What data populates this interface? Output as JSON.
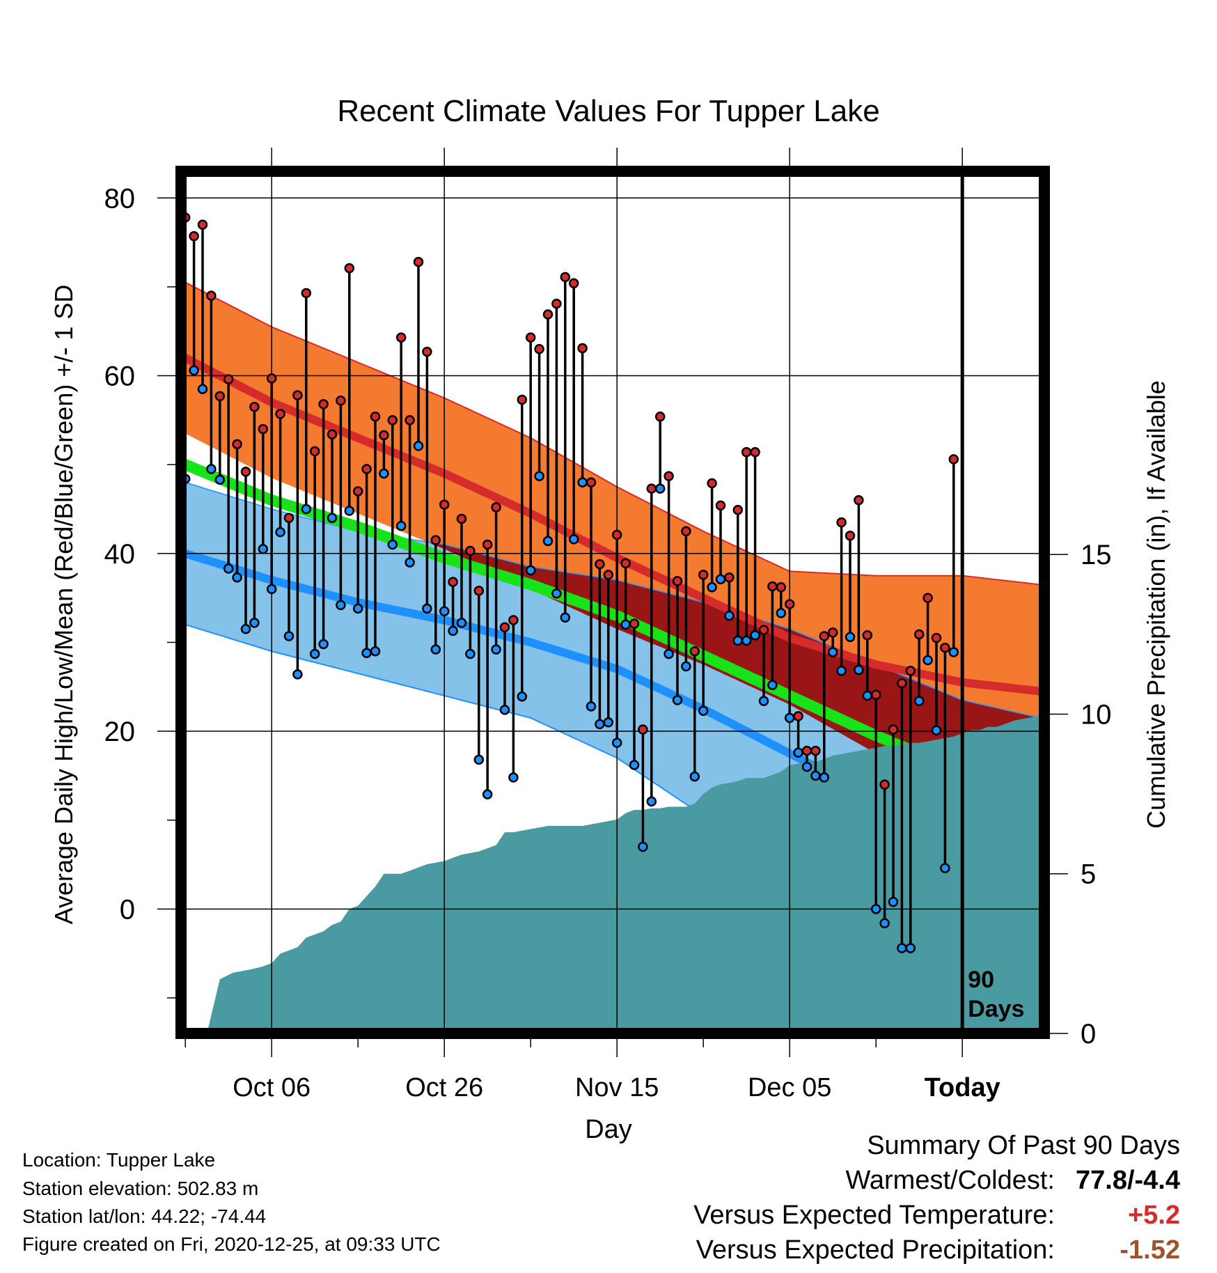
{
  "chart_data": {
    "type": "line",
    "title": "Recent Climate Values For Tupper Lake",
    "xlabel": "Day",
    "ylabel": "Average Daily High/Low/Mean (Red/Blue/Green) +/- 1 SD",
    "y2label": "Cumulative Precipitation (in), If Available",
    "ylim": [
      -14,
      83
    ],
    "y2lim": [
      0,
      27
    ],
    "yticks": [
      0,
      20,
      40,
      60,
      80
    ],
    "y2ticks": [
      0,
      5,
      10,
      15
    ],
    "x_tick_labels": [
      {
        "day": 10,
        "label": "Oct 06"
      },
      {
        "day": 30,
        "label": "Oct 26"
      },
      {
        "day": 50,
        "label": "Nov 15"
      },
      {
        "day": 70,
        "label": "Dec 05"
      },
      {
        "day": 90,
        "label": "Today"
      }
    ],
    "x_range": [
      -0.5,
      99.5
    ],
    "today_marker": {
      "day": 90,
      "label_line1": "90",
      "label_line2": "Days"
    },
    "grid": true,
    "colors": {
      "high_band": "#f47a30",
      "high_mean": "#d62b2b",
      "low_band": "#84c2ea",
      "low_mean": "#1e90ff",
      "mean_band": "#18e318",
      "overlap_band": "#9a1515",
      "precipitation": "#4a9aa2",
      "high_point": "#d62b2b",
      "low_point": "#1e90ff"
    },
    "normals": {
      "days": [
        0,
        10,
        20,
        30,
        40,
        50,
        60,
        70,
        80,
        90,
        99
      ],
      "high_mean": [
        62,
        57,
        53,
        49,
        44.5,
        39.5,
        35,
        30.5,
        27.5,
        25.5,
        24.5
      ],
      "high_sd": [
        8.5,
        8.5,
        8.5,
        8.5,
        8.5,
        8,
        7.5,
        7.5,
        10,
        12,
        12
      ],
      "low_mean": [
        40,
        37,
        34.5,
        32.5,
        30,
        27,
        22.5,
        17.5,
        12.5,
        8,
        5.5
      ],
      "low_sd": [
        8,
        8,
        8,
        8.5,
        8.5,
        10,
        12,
        14,
        15,
        15.5,
        16
      ],
      "mean": [
        50,
        46,
        43,
        39.5,
        36.5,
        33,
        28.5,
        24,
        19.5,
        15.5,
        12.5
      ]
    },
    "series": [
      {
        "name": "High",
        "values": [
          77.8,
          75.7,
          77.0,
          69.0,
          57.7,
          59.6,
          52.3,
          49.2,
          56.5,
          54.0,
          59.7,
          55.7,
          44.0,
          57.8,
          69.3,
          51.5,
          56.8,
          53.4,
          57.2,
          72.1,
          47.0,
          49.5,
          55.4,
          53.3,
          55.0,
          64.3,
          55.0,
          72.8,
          62.7,
          41.5,
          45.5,
          36.8,
          43.9,
          40.3,
          35.8,
          41.0,
          45.2,
          31.7,
          32.5,
          57.3,
          64.3,
          63.0,
          66.9,
          68.1,
          71.1,
          70.4,
          63.1,
          48.0,
          38.8,
          37.6,
          42.1,
          38.9,
          32.1,
          20.2,
          47.3,
          55.4,
          48.7,
          36.9,
          42.5,
          29.0,
          37.6,
          47.9,
          45.4,
          37.3,
          44.9,
          51.4,
          51.4,
          31.4,
          36.3,
          36.2,
          34.3,
          21.7,
          17.8,
          17.8,
          30.7,
          31.1,
          43.5,
          42.0,
          46.0,
          30.8,
          24.1,
          14.0,
          20.2,
          25.4,
          26.8,
          30.9,
          35.0,
          30.5,
          29.4,
          50.6
        ],
        "color": "#d62b2b"
      },
      {
        "name": "Low",
        "values": [
          48.4,
          60.6,
          58.5,
          49.5,
          48.3,
          38.3,
          37.3,
          31.5,
          32.2,
          40.5,
          36.0,
          42.4,
          30.7,
          26.4,
          45.0,
          28.7,
          29.8,
          44.0,
          34.2,
          44.8,
          33.8,
          28.8,
          29.0,
          49.0,
          41.0,
          43.1,
          39.0,
          52.1,
          33.8,
          29.2,
          33.5,
          31.3,
          32.2,
          28.7,
          16.8,
          12.9,
          29.2,
          22.4,
          14.8,
          23.9,
          38.1,
          48.7,
          41.4,
          35.5,
          32.8,
          41.6,
          48.0,
          22.8,
          20.8,
          21.0,
          18.7,
          32.0,
          16.2,
          7.0,
          12.1,
          47.3,
          28.7,
          23.5,
          27.3,
          14.9,
          22.3,
          36.2,
          37.1,
          33.0,
          30.2,
          30.2,
          30.8,
          23.4,
          25.2,
          33.3,
          21.5,
          17.6,
          16.0,
          15.0,
          14.8,
          28.9,
          26.8,
          30.6,
          26.9,
          24.0,
          0.0,
          -1.6,
          0.8,
          -4.4,
          -4.4,
          23.4,
          28.0,
          20.1,
          4.6,
          28.9
        ],
        "color": "#1e90ff"
      }
    ],
    "precipitation": {
      "name": "Cumulative precipitation",
      "days": [
        -0.5,
        2.5,
        4,
        5.5,
        7.5,
        9,
        10,
        11,
        12,
        13,
        14,
        15,
        16,
        17,
        18,
        19,
        20,
        21,
        22,
        23,
        24,
        25,
        26,
        27,
        28,
        29,
        30,
        31,
        32,
        33,
        34,
        35,
        36,
        37,
        38,
        39,
        40,
        41,
        42,
        43,
        44,
        45,
        46,
        47,
        48,
        49,
        50,
        51,
        52,
        53,
        54,
        55,
        56,
        57,
        58,
        59,
        60,
        61,
        62,
        63,
        64,
        65,
        66,
        67,
        68,
        69,
        70,
        71,
        72,
        73,
        74,
        75,
        76,
        77,
        78,
        79,
        80,
        81,
        82,
        83,
        84,
        85,
        86,
        87,
        88,
        89,
        90,
        91,
        92,
        93,
        94,
        95,
        96,
        97,
        98,
        99.5
      ],
      "values": [
        0,
        0,
        1.7,
        1.9,
        2.0,
        2.1,
        2.2,
        2.5,
        2.6,
        2.7,
        3.0,
        3.1,
        3.2,
        3.4,
        3.5,
        3.9,
        4.0,
        4.3,
        4.6,
        5.0,
        5.0,
        5.0,
        5.1,
        5.2,
        5.3,
        5.35,
        5.4,
        5.5,
        5.6,
        5.65,
        5.7,
        5.8,
        5.9,
        6.3,
        6.3,
        6.35,
        6.4,
        6.45,
        6.5,
        6.5,
        6.5,
        6.5,
        6.5,
        6.55,
        6.6,
        6.65,
        6.7,
        6.9,
        7.0,
        7.0,
        7.05,
        7.05,
        7.1,
        7.1,
        7.1,
        7.2,
        7.5,
        7.7,
        7.8,
        7.85,
        7.9,
        8.0,
        8.0,
        8.0,
        8.1,
        8.2,
        8.4,
        8.45,
        8.5,
        8.5,
        8.6,
        8.7,
        8.75,
        8.8,
        8.85,
        8.9,
        8.95,
        9.0,
        9.0,
        9.05,
        9.1,
        9.1,
        9.15,
        9.2,
        9.25,
        9.3,
        9.4,
        9.5,
        9.5,
        9.6,
        9.6,
        9.7,
        9.8,
        9.85,
        9.9,
        10.0
      ]
    }
  },
  "info": {
    "location": "Location: Tupper Lake",
    "elevation": "Station elevation: 502.83 m",
    "latlon": "Station lat/lon: 44.22; -74.44",
    "created": "Figure created on Fri, 2020-12-25, at 09:33 UTC"
  },
  "summary": {
    "title": "Summary Of Past 90 Days",
    "warmest_label": "Warmest/Coldest:",
    "warmest_value": "77.8/-4.4",
    "temp_label": "Versus Expected Temperature:",
    "temp_value": "+5.2",
    "temp_color": "#d62b2b",
    "precip_label": "Versus Expected Precipitation:",
    "precip_value": "-1.52",
    "precip_color": "#a0522d"
  }
}
